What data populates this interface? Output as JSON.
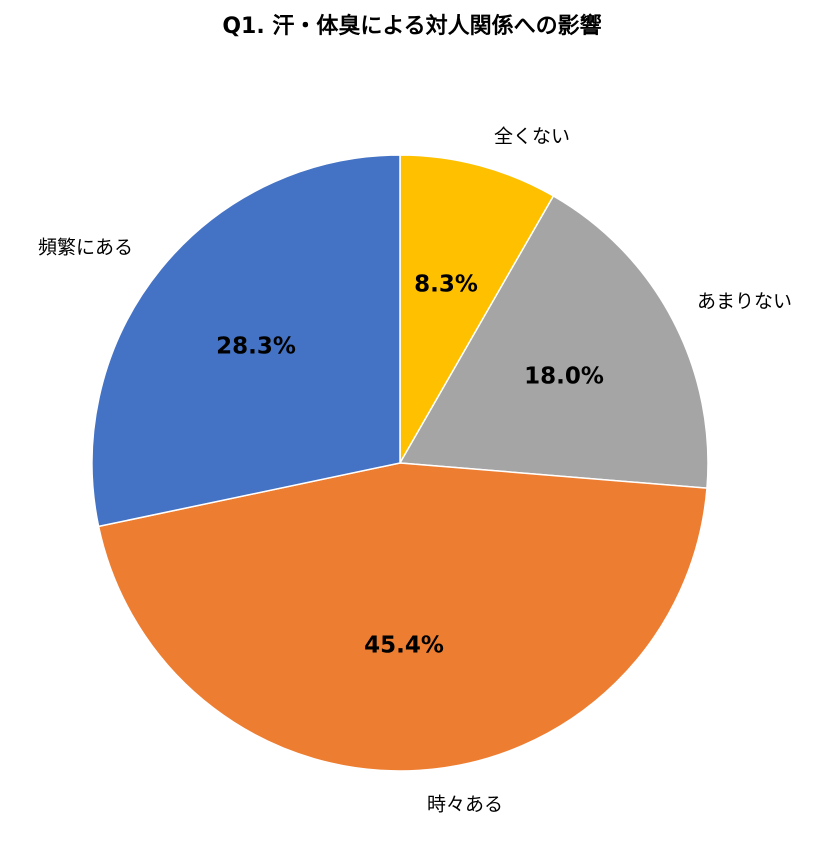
{
  "chart_data": {
    "type": "pie",
    "title": "Q1. 汗・体臭による対人関係への影響",
    "start_angle_deg": 0,
    "direction": "clockwise",
    "legend": "none (labels on chart)",
    "slices": [
      {
        "label": "全くない",
        "value": 8.3,
        "display": "8.3%",
        "color": "#FFC000"
      },
      {
        "label": "あまりない",
        "value": 18.0,
        "display": "18.0%",
        "color": "#A5A5A5"
      },
      {
        "label": "時々ある",
        "value": 45.4,
        "display": "45.4%",
        "color": "#ED7D31"
      },
      {
        "label": "頻繁にある",
        "value": 28.3,
        "display": "28.3%",
        "color": "#4472C4"
      }
    ]
  }
}
